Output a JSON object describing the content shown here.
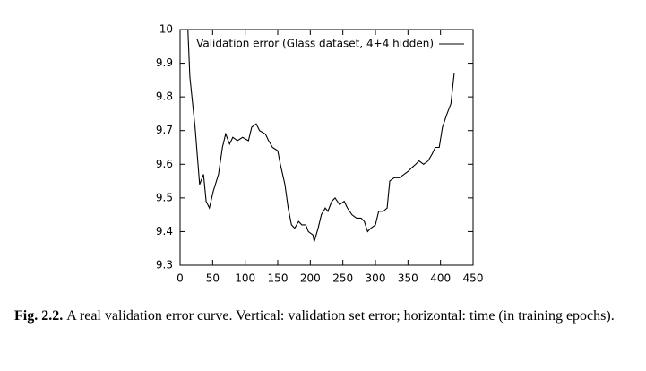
{
  "chart_data": {
    "type": "line",
    "legend_title": "Validation error (Glass dataset, 4+4 hidden)",
    "legend_position": "top-right",
    "x": [
      12,
      15,
      23,
      30,
      36,
      40,
      45,
      51,
      59,
      65,
      70,
      76,
      81,
      88,
      96,
      105,
      110,
      117,
      122,
      131,
      136,
      142,
      150,
      154,
      161,
      166,
      171,
      176,
      182,
      187,
      193,
      197,
      204,
      206,
      212,
      217,
      223,
      227,
      233,
      238,
      245,
      252,
      257,
      264,
      271,
      278,
      283,
      288,
      293,
      300,
      305,
      312,
      318,
      322,
      329,
      337,
      344,
      351,
      356,
      362,
      367,
      374,
      381,
      387,
      392,
      398,
      403,
      410,
      416,
      421
    ],
    "series": [
      {
        "name": "Validation error (Glass dataset, 4+4 hidden)",
        "color": "#000000",
        "values": [
          10.0,
          9.86,
          9.71,
          9.54,
          9.57,
          9.49,
          9.47,
          9.52,
          9.57,
          9.65,
          9.69,
          9.66,
          9.68,
          9.67,
          9.68,
          9.67,
          9.71,
          9.72,
          9.7,
          9.69,
          9.67,
          9.65,
          9.64,
          9.6,
          9.54,
          9.47,
          9.42,
          9.41,
          9.43,
          9.42,
          9.42,
          9.4,
          9.39,
          9.37,
          9.41,
          9.45,
          9.47,
          9.46,
          9.49,
          9.5,
          9.48,
          9.49,
          9.47,
          9.45,
          9.44,
          9.44,
          9.43,
          9.4,
          9.41,
          9.42,
          9.46,
          9.46,
          9.47,
          9.55,
          9.56,
          9.56,
          9.57,
          9.58,
          9.59,
          9.6,
          9.61,
          9.6,
          9.61,
          9.63,
          9.65,
          9.65,
          9.71,
          9.75,
          9.78,
          9.87
        ]
      }
    ],
    "xlim": [
      0,
      450
    ],
    "xticks": [
      0,
      50,
      100,
      150,
      200,
      250,
      300,
      350,
      400,
      450
    ],
    "ylim": [
      9.3,
      10
    ],
    "yticks": [
      9.3,
      9.4,
      9.5,
      9.6,
      9.7,
      9.8,
      9.9,
      10
    ],
    "grid": false,
    "caption_label": "Fig. 2.2.",
    "caption": "A real validation error curve. Vertical: validation set error; horizontal: time (in training epochs)."
  }
}
